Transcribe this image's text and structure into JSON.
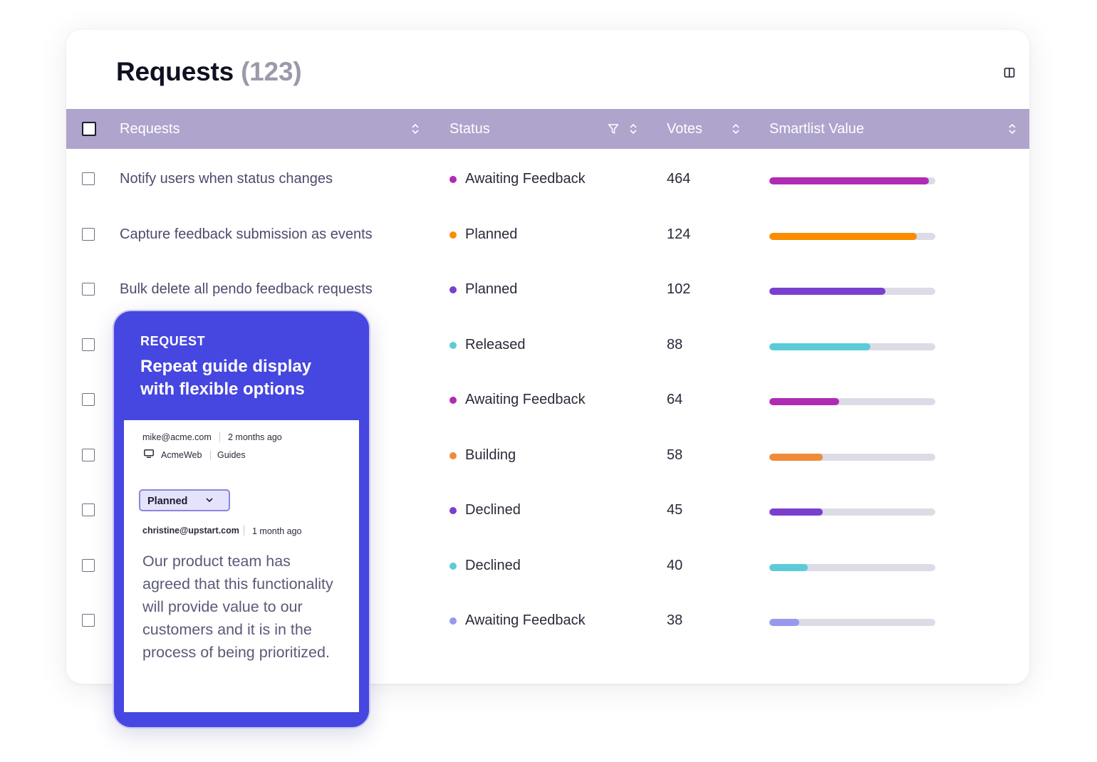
{
  "page": {
    "title": "Requests",
    "count": "(123)"
  },
  "table": {
    "columns": {
      "requests": "Requests",
      "status": "Status",
      "votes": "Votes",
      "smartlist": "Smartlist Value"
    },
    "rows": [
      {
        "title": "Notify users when status changes",
        "status": "Awaiting Feedback",
        "dot_color": "#b02bb3",
        "votes": "464",
        "smartlist_fraction": 0.96,
        "bar_color": "#b02bb3"
      },
      {
        "title": "Capture feedback submission as events",
        "status": "Planned",
        "dot_color": "#fb8c00",
        "votes": "124",
        "smartlist_fraction": 0.89,
        "bar_color": "#fb8c00"
      },
      {
        "title": "Bulk delete all pendo feedback requests",
        "status": "Planned",
        "dot_color": "#7a3fcf",
        "votes": "102",
        "smartlist_fraction": 0.7,
        "bar_color": "#7a3fcf"
      },
      {
        "title": "",
        "status": "Released",
        "dot_color": "#5ccbd9",
        "votes": "88",
        "smartlist_fraction": 0.61,
        "bar_color": "#5ccbd9"
      },
      {
        "title": "",
        "status": "Awaiting Feedback",
        "dot_color": "#b02bb3",
        "votes": "64",
        "smartlist_fraction": 0.42,
        "bar_color": "#b02bb3"
      },
      {
        "title": "",
        "status": "Building",
        "dot_color": "#ef8a3a",
        "votes": "58",
        "smartlist_fraction": 0.32,
        "bar_color": "#ef8a3a"
      },
      {
        "title": "",
        "status": "Declined",
        "dot_color": "#7a3fcf",
        "votes": "45",
        "smartlist_fraction": 0.32,
        "bar_color": "#7a3fcf"
      },
      {
        "title": "",
        "status": "Declined",
        "dot_color": "#5ccbd9",
        "votes": "40",
        "smartlist_fraction": 0.23,
        "bar_color": "#5ccbd9"
      },
      {
        "title": "",
        "status": "Awaiting Feedback",
        "dot_color": "#9898ec",
        "votes": "38",
        "smartlist_fraction": 0.18,
        "bar_color": "#9898ec"
      }
    ]
  },
  "card": {
    "kicker": "REQUEST",
    "title": "Repeat guide display with flexible options",
    "author": "mike@acme.com",
    "author_time": "2 months ago",
    "app": "AcmeWeb",
    "product_area": "Guides",
    "status_select": "Planned",
    "commenter": "christine@upstart.com",
    "comment_time": "1 month ago",
    "comment": "Our product team has agreed that this functionality will provide value to our customers and it is in the process of being prioritized."
  },
  "colors": {
    "header_bg": "#aea4cc",
    "card_bg": "#4646e0"
  },
  "icons": [
    "split-view-icon",
    "sort-icon",
    "filter-icon",
    "monitor-icon",
    "chevron-down-icon"
  ]
}
